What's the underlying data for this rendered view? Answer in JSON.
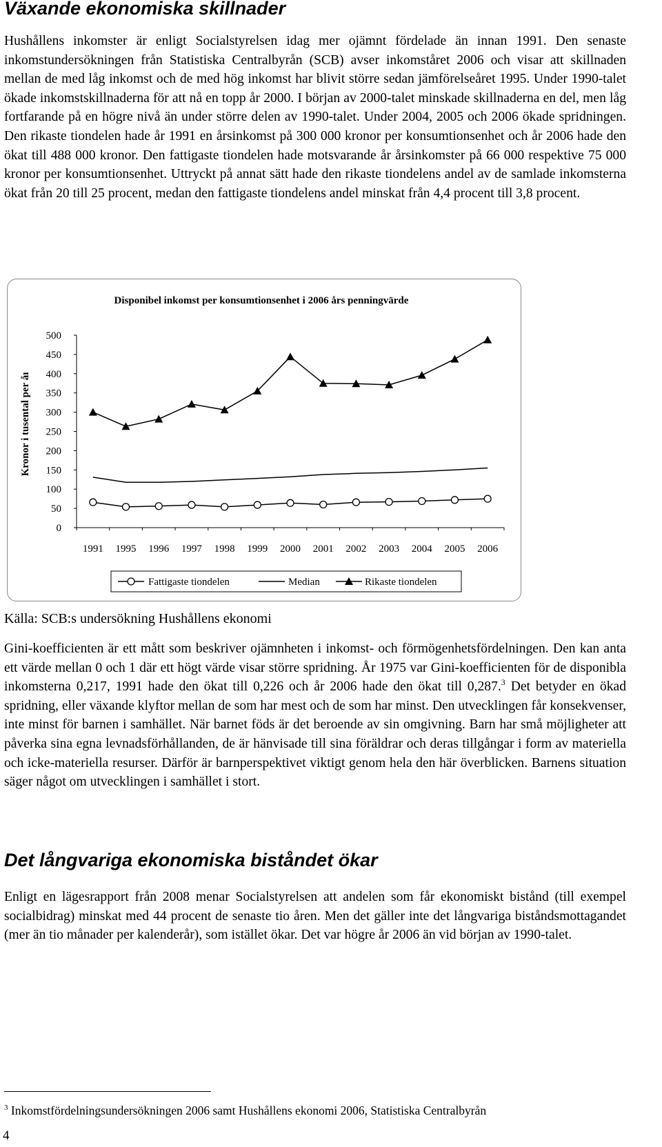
{
  "heading1": "Växande ekonomiska skillnader",
  "paragraph1": "Hushållens inkomster är enligt Socialstyrelsen idag mer ojämnt fördelade än innan 1991. Den senaste inkomstundersökningen från Statistiska Centralbyrån (SCB) avser inkomståret 2006 och visar att skillnaden mellan de med låg inkomst och de med hög inkomst har blivit större sedan jämförelseåret 1995. Under 1990-talet ökade inkomstskillnaderna för att nå en topp år 2000. I början av 2000-talet minskade skillnaderna en del, men låg fortfarande på en högre nivå än under större delen av 1990-talet. Under 2004, 2005 och 2006 ökade spridningen. Den rikaste tiondelen hade år 1991 en årsinkomst på 300 000 kronor per konsumtionsenhet och år 2006 hade den ökat till 488 000 kronor. Den fattigaste tiondelen hade motsvarande år årsinkomster på 66 000 respektive 75 000 kronor per konsumtionsenhet. Uttryckt på annat sätt hade den rikaste tiondelens andel av de samlade inkomsterna ökat från 20 till 25 procent, medan den fattigaste tiondelens andel minskat från 4,4 procent till 3,8 procent.",
  "chart_data": {
    "type": "line",
    "title": "Disponibel inkomst per konsumtionsenhet i 2006 års penningvärde",
    "ylabel": "Kronor i tusental per år",
    "ylabel_shown": "Kronor i tusental per åı",
    "xlabel": "",
    "categories": [
      "1991",
      "1995",
      "1996",
      "1997",
      "1998",
      "1999",
      "2000",
      "2001",
      "2002",
      "2003",
      "2004",
      "2005",
      "2006"
    ],
    "yticks": [
      "0",
      "50",
      "100",
      "150",
      "200",
      "250",
      "300",
      "350",
      "400",
      "450",
      "500"
    ],
    "ylim": [
      0,
      500
    ],
    "grid": false,
    "legend_position": "bottom",
    "series": [
      {
        "name": "Fattigaste tiondelen",
        "marker": "circle",
        "values": [
          66,
          54,
          56,
          59,
          54,
          59,
          64,
          60,
          66,
          67,
          69,
          72,
          75
        ]
      },
      {
        "name": "Median",
        "marker": "none",
        "values": [
          131,
          118,
          118,
          120,
          124,
          128,
          132,
          138,
          141,
          143,
          146,
          150,
          155
        ]
      },
      {
        "name": "Rikaste tiondelen",
        "marker": "triangle",
        "values": [
          300,
          263,
          282,
          321,
          306,
          355,
          444,
          375,
          374,
          371,
          396,
          438,
          488
        ]
      }
    ]
  },
  "source_note": "Källa: SCB:s undersökning Hushållens ekonomi",
  "paragraph2_before_ref": "Gini-koefficienten är ett mått som beskriver ojämnheten i inkomst- och förmögenhetsfördelningen. Den kan anta ett värde mellan 0 och 1 där ett högt värde visar större spridning. År 1975 var Gini-koefficienten för de disponibla inkomsterna 0,217, 1991 hade den ökat till 0,226 och år 2006 hade den ökat till 0,287.",
  "paragraph2_ref": "3",
  "paragraph2_after_ref": " Det betyder en ökad spridning, eller växande klyftor mellan de som har mest och de som har minst. Den utvecklingen får konsekvenser, inte minst för barnen i samhället. När barnet föds är det beroende av sin omgivning. Barn har små möjligheter att påverka sina egna levnadsförhållanden, de är hänvisade till sina föräldrar och deras tillgångar i form av materiella och icke-materiella resurser. Därför är barnperspektivet viktigt genom hela den här överblicken. Barnens situation säger något om utvecklingen i samhället i stort.",
  "heading2": "Det långvariga ekonomiska biståndet ökar",
  "paragraph3": "Enligt en lägesrapport från 2008 menar Socialstyrelsen att andelen som får ekonomiskt bistånd (till exempel socialbidrag) minskat med 44 procent de senaste tio åren. Men det gäller inte det långvariga biståndsmottagandet (mer än tio månader per kalenderår), som istället ökar. Det var högre år 2006 än vid början av 1990-talet.",
  "footnote_number": "3",
  "footnote_text": "Inkomstfördelningsundersökningen 2006  samt Hushållens ekonomi 2006, Statistiska Centralbyrån",
  "page_number": "4"
}
